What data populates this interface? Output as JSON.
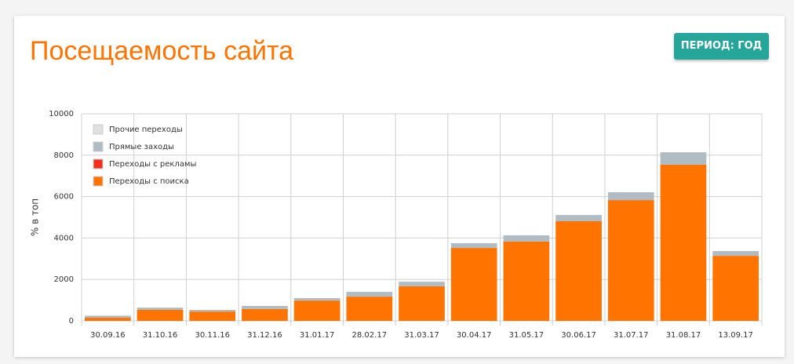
{
  "chart_data": {
    "type": "stacked_bar",
    "title": "Посещаемость сайта",
    "y_label": "% в топ",
    "categories": [
      "30.09.16",
      "31.10.16",
      "30.11.16",
      "31.12.16",
      "31.01.17",
      "28.02.17",
      "31.03.17",
      "30.04.17",
      "31.05.17",
      "30.06.17",
      "31.07.17",
      "31.08.17",
      "13.09.17"
    ],
    "series": [
      {
        "name": "Прочие переходы",
        "color": "#e0e0e0",
        "values": [
          0,
          0,
          0,
          0,
          0,
          0,
          0,
          0,
          0,
          0,
          0,
          0,
          0
        ]
      },
      {
        "name": "Прямые заходы",
        "color": "#b0bcc4",
        "values": [
          100,
          110,
          80,
          150,
          120,
          230,
          220,
          230,
          300,
          300,
          380,
          600,
          230
        ]
      },
      {
        "name": "Переходы с рекламы",
        "color": "#f4301c",
        "values": [
          0,
          0,
          0,
          0,
          0,
          0,
          0,
          0,
          0,
          0,
          0,
          0,
          0
        ]
      },
      {
        "name": "Переходы с поиска",
        "color": "#ff7300",
        "values": [
          150,
          530,
          450,
          570,
          980,
          1170,
          1670,
          3520,
          3830,
          4810,
          5830,
          7540,
          3140
        ]
      }
    ],
    "ylim": [
      0,
      10000
    ],
    "yticks": [
      0,
      2000,
      4000,
      6000,
      8000,
      10000
    ],
    "grid": true,
    "legend": "top-left"
  },
  "button": "ПЕРИОД: ГОД"
}
